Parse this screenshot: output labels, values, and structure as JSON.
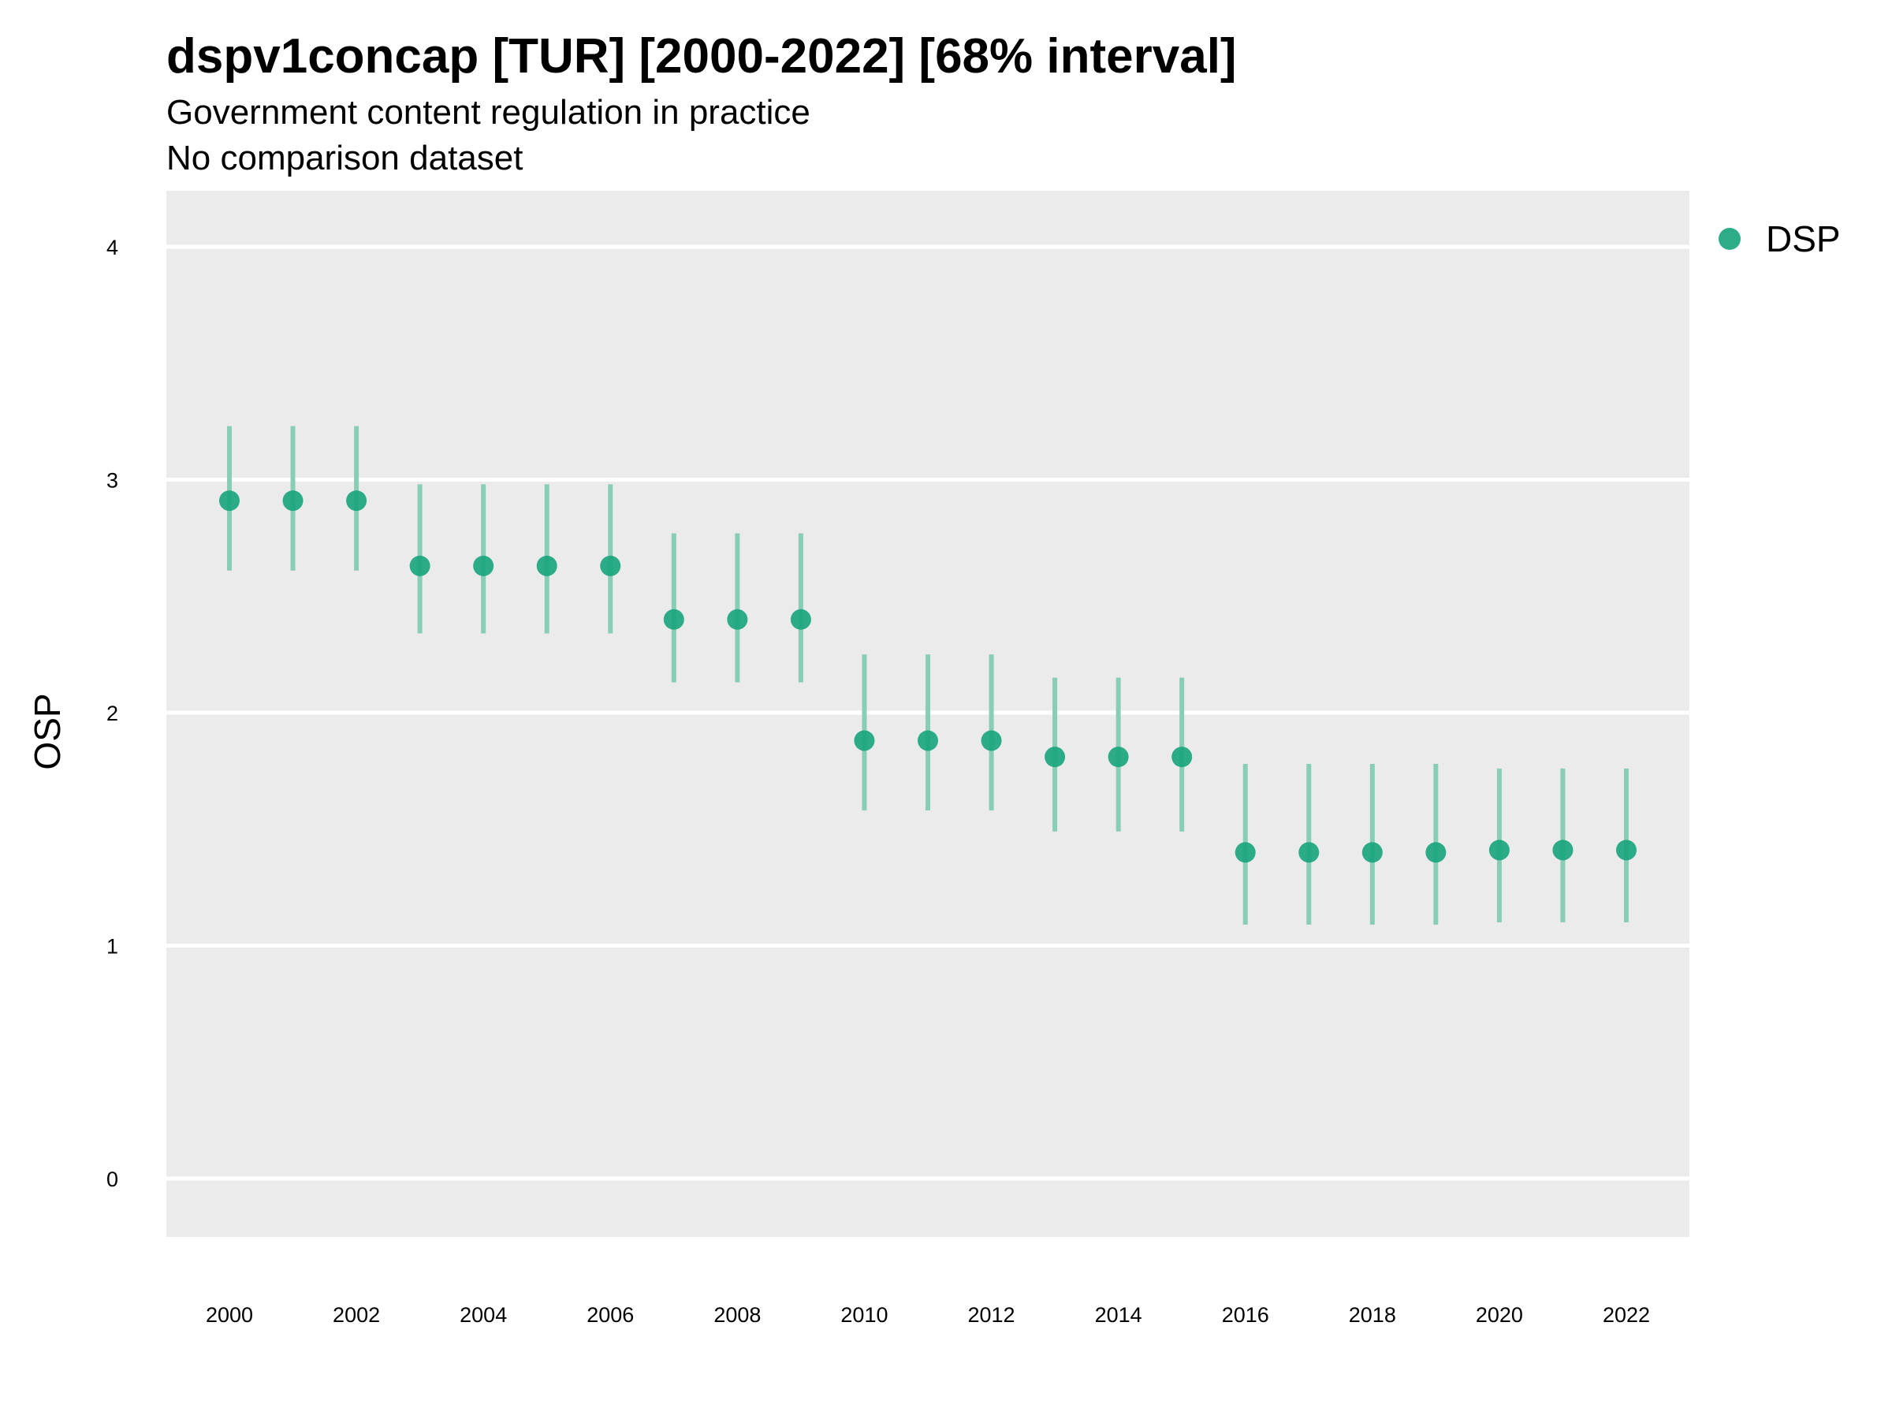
{
  "chart_data": {
    "type": "scatter",
    "title": "dspv1concap [TUR] [2000-2022] [68% interval]",
    "subtitle": "Government content regulation in practice",
    "subtitle2": "No comparison dataset",
    "xlabel": "",
    "ylabel": "OSP",
    "xlim": [
      1999,
      2023
    ],
    "ylim": [
      -0.25,
      4.25
    ],
    "x_ticks": [
      2000,
      2002,
      2004,
      2006,
      2008,
      2010,
      2012,
      2014,
      2016,
      2018,
      2020,
      2022
    ],
    "y_ticks": [
      0,
      1,
      2,
      3,
      4
    ],
    "grid": true,
    "legend_position": "top-right",
    "series": [
      {
        "name": "DSP",
        "color": "#1aa67d",
        "interval_color": "#88cdb5",
        "x": [
          2000,
          2001,
          2002,
          2003,
          2004,
          2005,
          2006,
          2007,
          2008,
          2009,
          2010,
          2011,
          2012,
          2013,
          2014,
          2015,
          2016,
          2017,
          2018,
          2019,
          2020,
          2021,
          2022
        ],
        "y": [
          2.91,
          2.91,
          2.91,
          2.63,
          2.63,
          2.63,
          2.63,
          2.4,
          2.4,
          2.4,
          1.88,
          1.88,
          1.88,
          1.81,
          1.81,
          1.81,
          1.4,
          1.4,
          1.4,
          1.4,
          1.41,
          1.41,
          1.41
        ],
        "lower": [
          2.61,
          2.61,
          2.61,
          2.34,
          2.34,
          2.34,
          2.34,
          2.13,
          2.13,
          2.13,
          1.58,
          1.58,
          1.58,
          1.49,
          1.49,
          1.49,
          1.09,
          1.09,
          1.09,
          1.09,
          1.1,
          1.1,
          1.1
        ],
        "upper": [
          3.23,
          3.23,
          3.23,
          2.98,
          2.98,
          2.98,
          2.98,
          2.77,
          2.77,
          2.77,
          2.25,
          2.25,
          2.25,
          2.15,
          2.15,
          2.15,
          1.78,
          1.78,
          1.78,
          1.78,
          1.76,
          1.76,
          1.76
        ]
      }
    ]
  }
}
